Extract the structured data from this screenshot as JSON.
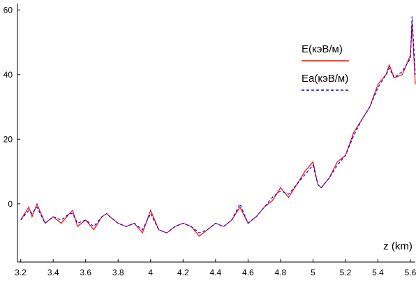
{
  "chart_data": {
    "type": "line",
    "x_label": "z (km)",
    "x": [
      3.2,
      3.25,
      3.27,
      3.3,
      3.35,
      3.4,
      3.45,
      3.5,
      3.52,
      3.55,
      3.6,
      3.65,
      3.7,
      3.73,
      3.75,
      3.8,
      3.85,
      3.9,
      3.95,
      4.0,
      4.05,
      4.1,
      4.15,
      4.2,
      4.25,
      4.3,
      4.35,
      4.4,
      4.45,
      4.5,
      4.55,
      4.6,
      4.65,
      4.7,
      4.75,
      4.8,
      4.85,
      4.9,
      4.95,
      5.0,
      5.03,
      5.05,
      5.1,
      5.15,
      5.2,
      5.25,
      5.3,
      5.35,
      5.4,
      5.45,
      5.47,
      5.5,
      5.55,
      5.6,
      5.61,
      5.63
    ],
    "series": [
      {
        "name": "E(кэВ/м)",
        "color": "#ff0000",
        "dash": false,
        "values": [
          -5,
          -1,
          -4,
          0,
          -6,
          -4,
          -6,
          -3,
          -2,
          -7,
          -5,
          -8,
          -4,
          -3,
          -4,
          -6,
          -7,
          -6,
          -9,
          -2,
          -8,
          -9,
          -7,
          -6,
          -7,
          -10,
          -8,
          -6,
          -7,
          -5,
          -1,
          -6,
          -4,
          -1,
          1,
          5,
          2,
          6,
          10,
          13,
          6,
          5,
          8,
          13,
          15,
          22,
          26,
          30,
          37,
          40,
          43,
          39,
          40,
          46,
          56,
          37
        ]
      },
      {
        "name": "Ea(кэВ/м)",
        "color": "#0000ff",
        "dash": true,
        "values": [
          -5,
          -2,
          -3,
          -1,
          -6,
          -4,
          -5,
          -3,
          -3,
          -6,
          -5,
          -7,
          -4,
          -3,
          -4,
          -6,
          -7,
          -6,
          -8,
          -3,
          -8,
          -9,
          -7,
          -6,
          -7,
          -9,
          -8,
          -6,
          -7,
          -5,
          0,
          -6,
          -4,
          -1,
          2,
          4,
          3,
          6,
          9,
          12,
          6,
          5,
          8,
          12,
          15,
          21,
          26,
          30,
          36,
          40,
          42,
          39,
          41,
          45,
          58,
          40
        ]
      }
    ],
    "xlim": [
      3.18,
      5.63
    ],
    "ylim": [
      -18,
      62
    ],
    "xticks": [
      3.2,
      3.4,
      3.6,
      3.8,
      4,
      4.2,
      4.4,
      4.6,
      4.8,
      5,
      5.2,
      5.4,
      5.6
    ],
    "yticks": [
      0,
      20,
      40,
      60
    ]
  }
}
